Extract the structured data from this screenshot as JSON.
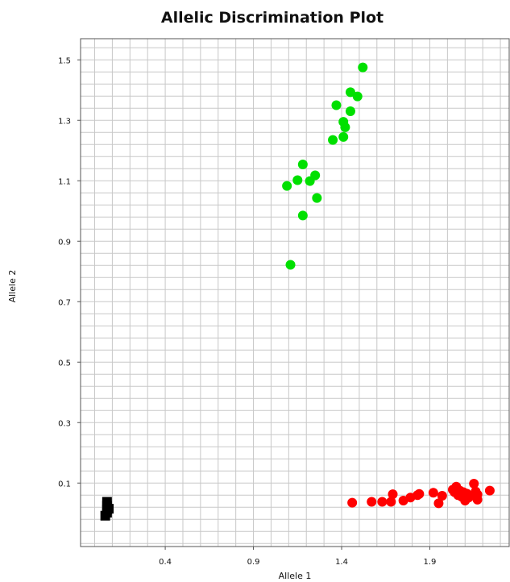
{
  "chart_data": {
    "type": "scatter",
    "title": "Allelic Discrimination Plot",
    "xlabel": "Allele 1",
    "ylabel": "Allele 2",
    "xlim": [
      -0.08,
      2.35
    ],
    "ylim": [
      -0.11,
      1.57
    ],
    "x_ticks": [
      0.4,
      0.9,
      1.4,
      1.9
    ],
    "y_ticks": [
      0.1,
      0.3,
      0.5,
      0.7,
      0.9,
      1.1,
      1.3,
      1.5
    ],
    "grid": true,
    "legend": "none",
    "colors": {
      "allele2": "#00e000",
      "allele1": "#ff0000",
      "ntc": "#000000",
      "grid": "#c8c8c8"
    },
    "series": [
      {
        "marker": "circle",
        "color": "#00e000",
        "points": [
          [
            1.52,
            1.475
          ],
          [
            1.45,
            1.393
          ],
          [
            1.49,
            1.379
          ],
          [
            1.37,
            1.35
          ],
          [
            1.45,
            1.33
          ],
          [
            1.41,
            1.295
          ],
          [
            1.42,
            1.277
          ],
          [
            1.41,
            1.245
          ],
          [
            1.35,
            1.235
          ],
          [
            1.18,
            1.154
          ],
          [
            1.25,
            1.118
          ],
          [
            1.15,
            1.102
          ],
          [
            1.22,
            1.099
          ],
          [
            1.09,
            1.083
          ],
          [
            1.26,
            1.043
          ],
          [
            1.18,
            0.985
          ],
          [
            1.11,
            0.822
          ]
        ]
      },
      {
        "marker": "circle",
        "color": "#ff0000",
        "points": [
          [
            1.46,
            0.035
          ],
          [
            1.57,
            0.038
          ],
          [
            1.63,
            0.038
          ],
          [
            1.68,
            0.038
          ],
          [
            1.69,
            0.063
          ],
          [
            1.75,
            0.042
          ],
          [
            1.79,
            0.052
          ],
          [
            1.83,
            0.06
          ],
          [
            1.84,
            0.064
          ],
          [
            1.92,
            0.068
          ],
          [
            1.95,
            0.033
          ],
          [
            1.97,
            0.058
          ],
          [
            2.03,
            0.078
          ],
          [
            2.04,
            0.07
          ],
          [
            2.05,
            0.088
          ],
          [
            2.06,
            0.06
          ],
          [
            2.07,
            0.075
          ],
          [
            2.08,
            0.055
          ],
          [
            2.09,
            0.07
          ],
          [
            2.1,
            0.042
          ],
          [
            2.11,
            0.065
          ],
          [
            2.12,
            0.052
          ],
          [
            2.15,
            0.098
          ],
          [
            2.16,
            0.072
          ],
          [
            2.17,
            0.045
          ],
          [
            2.17,
            0.062
          ],
          [
            2.24,
            0.075
          ]
        ]
      },
      {
        "marker": "square",
        "color": "#000000",
        "points": [
          [
            0.07,
            0.038
          ],
          [
            0.07,
            0.025
          ],
          [
            0.07,
            0.012
          ],
          [
            0.07,
            0.002
          ],
          [
            0.06,
            -0.008
          ],
          [
            0.08,
            0.015
          ]
        ]
      }
    ]
  }
}
